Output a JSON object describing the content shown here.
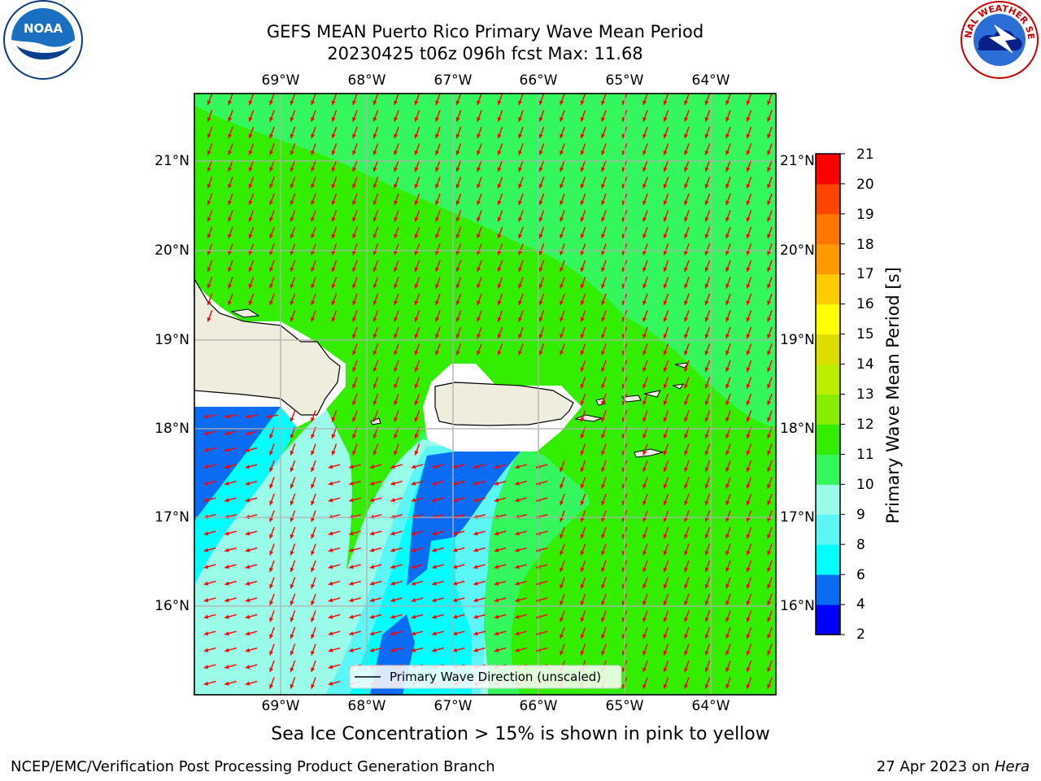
{
  "title": {
    "line1": "GEFS MEAN Puerto Rico Primary Wave Mean Period",
    "line2": "20230425 t06z 096h fcst   Max: 11.68"
  },
  "map": {
    "longitude_labels": [
      "69°W",
      "68°W",
      "67°W",
      "66°W",
      "65°W",
      "64°W"
    ],
    "latitude_labels": [
      "21°N",
      "20°N",
      "19°N",
      "18°N",
      "17°N",
      "16°N"
    ],
    "legend_label": "Primary Wave Direction (unscaled)",
    "arrow_color": "#ff0000",
    "land_color": "#efedde",
    "grid_color": "#b0b0b0"
  },
  "colorbar": {
    "label": "Primary Wave Mean Period [s]",
    "tick_labels": [
      "21",
      "20",
      "19",
      "18",
      "17",
      "16",
      "15",
      "14",
      "13",
      "12",
      "11",
      "10",
      "9",
      "8",
      "6",
      "4",
      "2"
    ],
    "levels": [
      {
        "from": 2,
        "to": 4,
        "color": "#0000ff"
      },
      {
        "from": 4,
        "to": 6,
        "color": "#0a6cf2"
      },
      {
        "from": 6,
        "to": 8,
        "color": "#00ffff"
      },
      {
        "from": 8,
        "to": 9,
        "color": "#5cf6f6"
      },
      {
        "from": 9,
        "to": 10,
        "color": "#9afce8"
      },
      {
        "from": 10,
        "to": 11,
        "color": "#33f75c"
      },
      {
        "from": 11,
        "to": 12,
        "color": "#33ee00"
      },
      {
        "from": 12,
        "to": 13,
        "color": "#88ee00"
      },
      {
        "from": 13,
        "to": 14,
        "color": "#bbee00"
      },
      {
        "from": 14,
        "to": 15,
        "color": "#dddd00"
      },
      {
        "from": 15,
        "to": 16,
        "color": "#ffff00"
      },
      {
        "from": 16,
        "to": 17,
        "color": "#ffcc00"
      },
      {
        "from": 17,
        "to": 18,
        "color": "#ff9900"
      },
      {
        "from": 18,
        "to": 19,
        "color": "#ff7700"
      },
      {
        "from": 19,
        "to": 20,
        "color": "#ff4400"
      },
      {
        "from": 20,
        "to": 21,
        "color": "#ff0000"
      }
    ]
  },
  "footnote": "Sea Ice Concentration > 15% is shown in pink to yellow",
  "footer": {
    "left": "NCEP/EMC/Verification Post Processing Product Generation Branch",
    "date": "27 Apr 2023 on",
    "machine": "Hera"
  },
  "logos": {
    "left": {
      "text": "NOAA"
    },
    "right": {
      "text": "NATIONAL WEATHER SERVICE"
    }
  }
}
